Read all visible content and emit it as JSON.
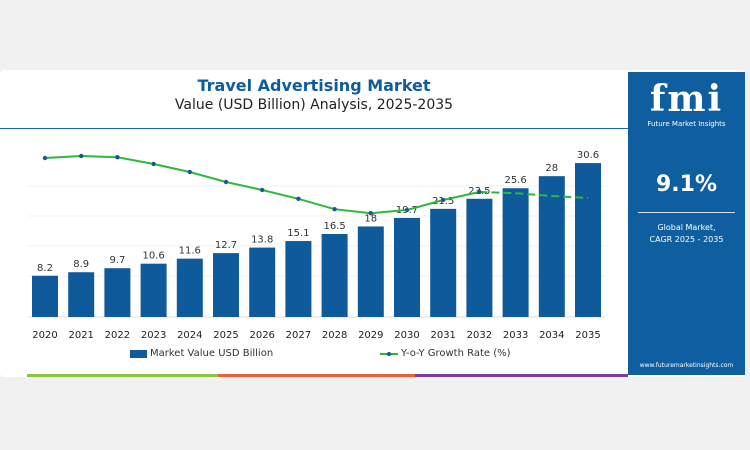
{
  "chart_data": {
    "type": "bar",
    "title": "Travel Advertising Market",
    "subtitle": "Value (USD Billion) Analysis, 2025-2035",
    "categories": [
      "2020",
      "2021",
      "2022",
      "2023",
      "2024",
      "2025",
      "2026",
      "2027",
      "2028",
      "2029",
      "2030",
      "2031",
      "2032",
      "2033",
      "2034",
      "2035"
    ],
    "series": [
      {
        "name": "Market Value USD Billion",
        "type": "bar",
        "color": "#0f5a9a",
        "values": [
          8.2,
          8.9,
          9.7,
          10.6,
          11.6,
          12.7,
          13.8,
          15.1,
          16.5,
          18.0,
          19.7,
          21.5,
          23.5,
          25.6,
          28.0,
          30.6
        ]
      },
      {
        "name": "Y-o-Y Growth Rate (%)",
        "type": "line",
        "color": "#2db83d",
        "dashed_from": "2032",
        "values": [
          9.0,
          9.25,
          9.1,
          8.25,
          7.25,
          6.0,
          5.0,
          3.9,
          2.6,
          2.1,
          2.5,
          3.75,
          4.75,
          4.6,
          4.25,
          4.0
        ]
      }
    ],
    "data_labels": true,
    "ylim": [
      0,
      32
    ],
    "grid": true,
    "legend": "bottom"
  },
  "side_panel": {
    "logo": "fmi",
    "logo_subtitle": "Future Market Insights",
    "cagr_value": "9.1%",
    "cagr_label_1": "Global Market,",
    "cagr_label_2": "CAGR 2025 - 2035",
    "url": "www.futuremarketinsights.com",
    "color": "#0f5fa0"
  }
}
